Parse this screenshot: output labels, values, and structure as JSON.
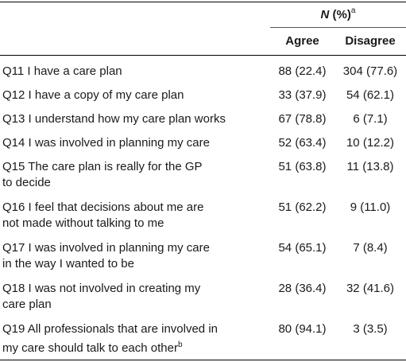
{
  "header": {
    "n_label": "N",
    "pct_label": " (%)",
    "sup": "a",
    "agree": "Agree",
    "disagree": "Disagree"
  },
  "rows": [
    {
      "q": "Q11 I have a care plan",
      "agree": "88 (22.4)",
      "disagree": "304 (77.6)"
    },
    {
      "q": "Q12 I have a copy of my care plan",
      "agree": "33 (37.9)",
      "disagree": "54 (62.1)"
    },
    {
      "q": "Q13 I understand how my care plan works",
      "agree": "67 (78.8)",
      "disagree": "6 (7.1)"
    },
    {
      "q": "Q14 I was involved in planning my care",
      "agree": "52 (63.4)",
      "disagree": "10 (12.2)"
    },
    {
      "q1": "Q15 The care plan is really for the GP",
      "q2": "to decide",
      "agree": "51 (63.8)",
      "disagree": "11 (13.8)"
    },
    {
      "q1": "Q16 I feel that decisions about me are",
      "q2": "not made without talking to me",
      "agree": "51 (62.2)",
      "disagree": "9 (11.0)"
    },
    {
      "q1": "Q17 I was involved in planning my care",
      "q2": "in the way I wanted to be",
      "agree": "54 (65.1)",
      "disagree": "7 (8.4)"
    },
    {
      "q1": "Q18 I was not involved in creating my",
      "q2": "care plan",
      "agree": "28 (36.4)",
      "disagree": "32 (41.6)"
    },
    {
      "q1": "Q19 All professionals that are involved in",
      "q2": "my care should talk to each other",
      "q2sup": "b",
      "agree": "80 (94.1)",
      "disagree": "3 (3.5)"
    }
  ]
}
